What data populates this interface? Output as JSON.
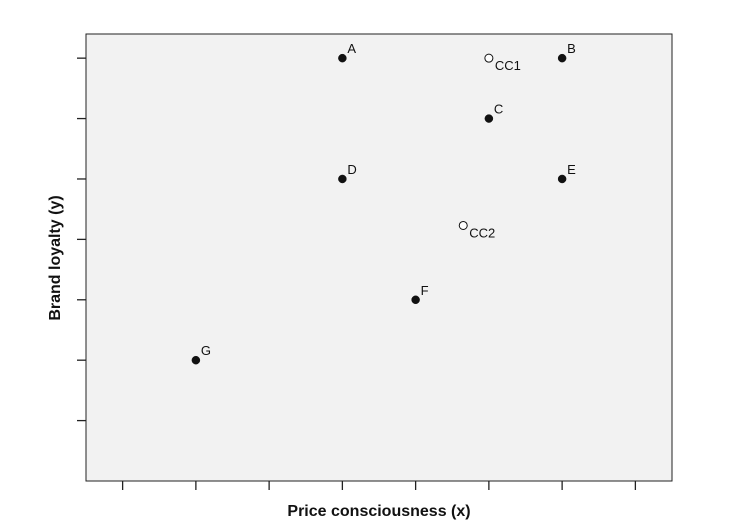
{
  "chart_data": {
    "type": "scatter",
    "title": "",
    "xlabel": "Price consciousness (x)",
    "ylabel": "Brand loyalty (y)",
    "xlim": [
      0.5,
      8.5
    ],
    "ylim": [
      0,
      7.4
    ],
    "x_ticks": [
      1,
      2,
      3,
      4,
      5,
      6,
      7,
      8
    ],
    "y_ticks": [
      1,
      2,
      3,
      4,
      5,
      6,
      7
    ],
    "tick_labels_shown": false,
    "grid": false,
    "background": "#f2f2f2",
    "series": [
      {
        "marker": "filled-circle",
        "color": "#111111",
        "points": [
          {
            "label": "A",
            "x": 4,
            "y": 7
          },
          {
            "label": "B",
            "x": 7,
            "y": 7
          },
          {
            "label": "C",
            "x": 6,
            "y": 6
          },
          {
            "label": "D",
            "x": 4,
            "y": 5
          },
          {
            "label": "E",
            "x": 7,
            "y": 5
          },
          {
            "label": "F",
            "x": 5,
            "y": 3
          },
          {
            "label": "G",
            "x": 2,
            "y": 2
          }
        ]
      },
      {
        "marker": "open-circle",
        "color": "#111111",
        "points": [
          {
            "label": "CC1",
            "x": 6,
            "y": 7
          },
          {
            "label": "CC2",
            "x": 5.65,
            "y": 4.23
          }
        ]
      }
    ]
  }
}
